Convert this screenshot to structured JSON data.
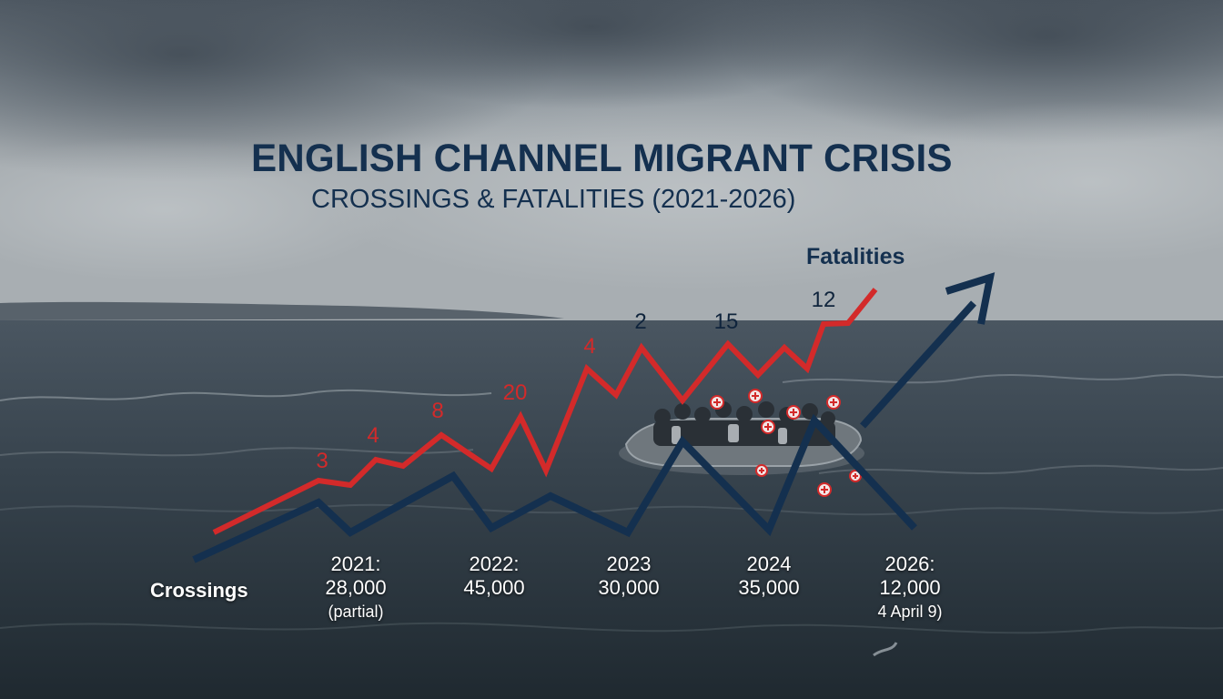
{
  "colors": {
    "fatalities_line": "#d32a2a",
    "crossings_line": "#14304f",
    "title": "#14304f",
    "sea": "#2e3a44",
    "sky": "#9aa3aa"
  },
  "chart_data": {
    "type": "line",
    "title": "ENGLISH CHANNEL MIGRANT CRISIS",
    "subtitle": "CROSSINGS & FATALITIES (2021-2026)",
    "series": [
      {
        "name": "Fatalities",
        "data_labels": [
          "3",
          "4",
          "8",
          "20",
          "4",
          "2",
          "15",
          "12"
        ]
      },
      {
        "name": "Crossings"
      }
    ],
    "year_labels": [
      {
        "year": "2021:",
        "value": "28,000",
        "note": "(partial)"
      },
      {
        "year": "2022:",
        "value": "45,000",
        "note": ""
      },
      {
        "year": "2023",
        "value": "30,000",
        "note": ""
      },
      {
        "year": "2024",
        "value": "35,000",
        "note": ""
      },
      {
        "year": "2026:",
        "value": "12,000",
        "note": "4 April 9)"
      }
    ],
    "grid": false,
    "legend": "inline labels"
  }
}
